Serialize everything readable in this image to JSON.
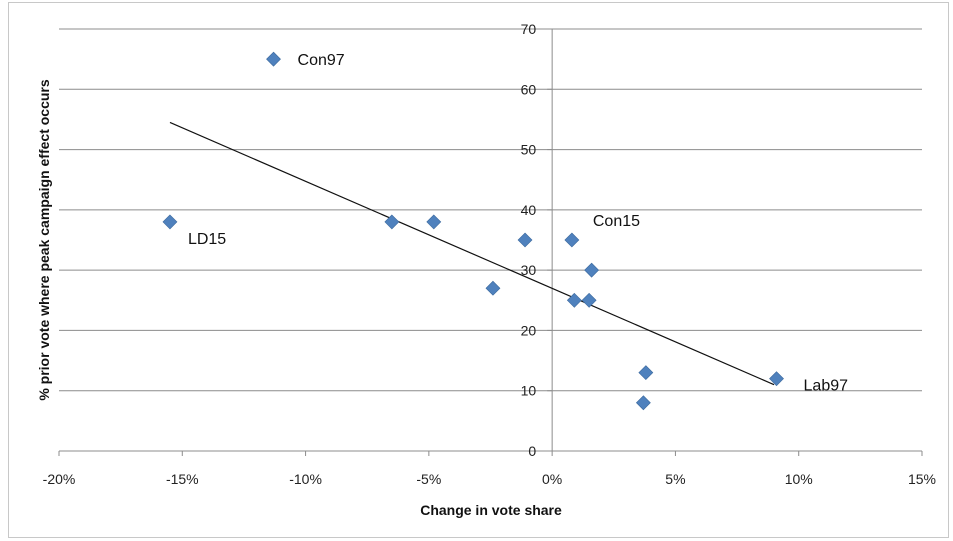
{
  "chart_data": {
    "type": "scatter",
    "title": "",
    "xlabel": "Change in vote share",
    "ylabel": "% prior vote where peak campaign effect occurs",
    "xlim": [
      -0.2,
      0.15
    ],
    "ylim": [
      0,
      70
    ],
    "x_ticks": [
      -0.2,
      -0.15,
      -0.1,
      -0.05,
      0,
      0.05,
      0.1,
      0.15
    ],
    "x_tick_labels": [
      "-20%",
      "-15%",
      "-10%",
      "-5%",
      "0%",
      "5%",
      "10%",
      "15%"
    ],
    "y_ticks": [
      0,
      10,
      20,
      30,
      40,
      50,
      60,
      70
    ],
    "y_tick_labels": [
      "0",
      "10",
      "20",
      "30",
      "40",
      "50",
      "60",
      "70"
    ],
    "grid": "horizontal",
    "legend": "none",
    "marker_color": "#4f81bd",
    "points": [
      {
        "x": -0.155,
        "y": 38,
        "label": "LD15"
      },
      {
        "x": -0.113,
        "y": 65,
        "label": "Con97"
      },
      {
        "x": -0.065,
        "y": 38,
        "label": ""
      },
      {
        "x": -0.048,
        "y": 38,
        "label": ""
      },
      {
        "x": -0.024,
        "y": 27,
        "label": ""
      },
      {
        "x": -0.011,
        "y": 35,
        "label": ""
      },
      {
        "x": 0.008,
        "y": 35,
        "label": "Con15"
      },
      {
        "x": 0.009,
        "y": 25,
        "label": ""
      },
      {
        "x": 0.015,
        "y": 25,
        "label": ""
      },
      {
        "x": 0.016,
        "y": 30,
        "label": ""
      },
      {
        "x": 0.037,
        "y": 8,
        "label": ""
      },
      {
        "x": 0.038,
        "y": 13,
        "label": ""
      },
      {
        "x": 0.091,
        "y": 12,
        "label": "Lab97"
      }
    ],
    "trendline": {
      "x": [
        -0.155,
        0.09
      ],
      "y": [
        54.5,
        11
      ]
    }
  }
}
